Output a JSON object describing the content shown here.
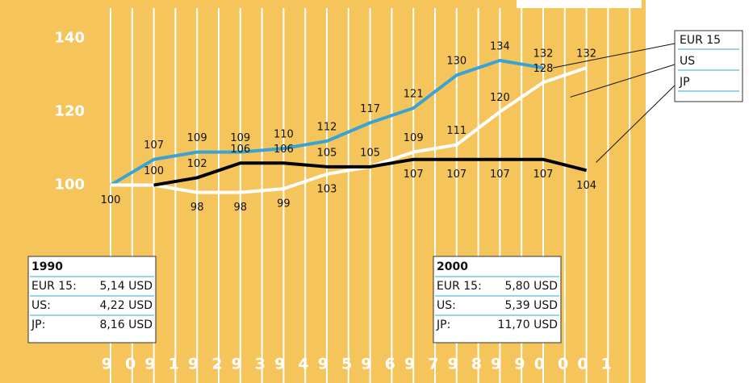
{
  "chart_data": {
    "type": "line",
    "categories": [
      "90",
      "91",
      "92",
      "93",
      "94",
      "95",
      "96",
      "97",
      "98",
      "99",
      "00",
      "01"
    ],
    "series": [
      {
        "name": "EUR 15",
        "color": "#3aa3d6",
        "values": [
          100,
          107,
          109,
          109,
          110,
          112,
          117,
          121,
          130,
          134,
          132,
          null
        ],
        "value_labels": [
          "100",
          "107",
          "109",
          "109",
          "110",
          "112",
          "117",
          "121",
          "130",
          "134",
          "132",
          null
        ]
      },
      {
        "name": "US",
        "color": "#ffffff",
        "values": [
          100,
          100,
          98,
          98,
          99,
          103,
          105,
          109,
          111,
          120,
          128,
          132
        ],
        "value_labels": [
          null,
          null,
          "98",
          "98",
          "99",
          "103",
          null,
          "109",
          "111",
          "120",
          "128",
          "132"
        ]
      },
      {
        "name": "JP",
        "color": "#000000",
        "values": [
          null,
          100,
          102,
          106,
          106,
          105,
          105,
          107,
          107,
          107,
          107,
          104
        ],
        "value_labels": [
          null,
          "100",
          "102",
          "106",
          "106",
          "105",
          "105",
          "107",
          "107",
          "107",
          "107",
          "104"
        ]
      }
    ],
    "ylim": [
      46,
      150.5
    ],
    "yticks": [
      100,
      120,
      140
    ],
    "boxes": [
      {
        "title": "1990",
        "rows": [
          [
            "EUR 15:",
            "5,14 USD"
          ],
          [
            "US:",
            "4,22 USD"
          ],
          [
            "JP:",
            "8,16 USD"
          ]
        ]
      },
      {
        "title": "2000",
        "rows": [
          [
            "EUR 15:",
            "5,80 USD"
          ],
          [
            "US:",
            "5,39 USD"
          ],
          [
            "JP:",
            "11,70 USD"
          ]
        ]
      }
    ]
  }
}
